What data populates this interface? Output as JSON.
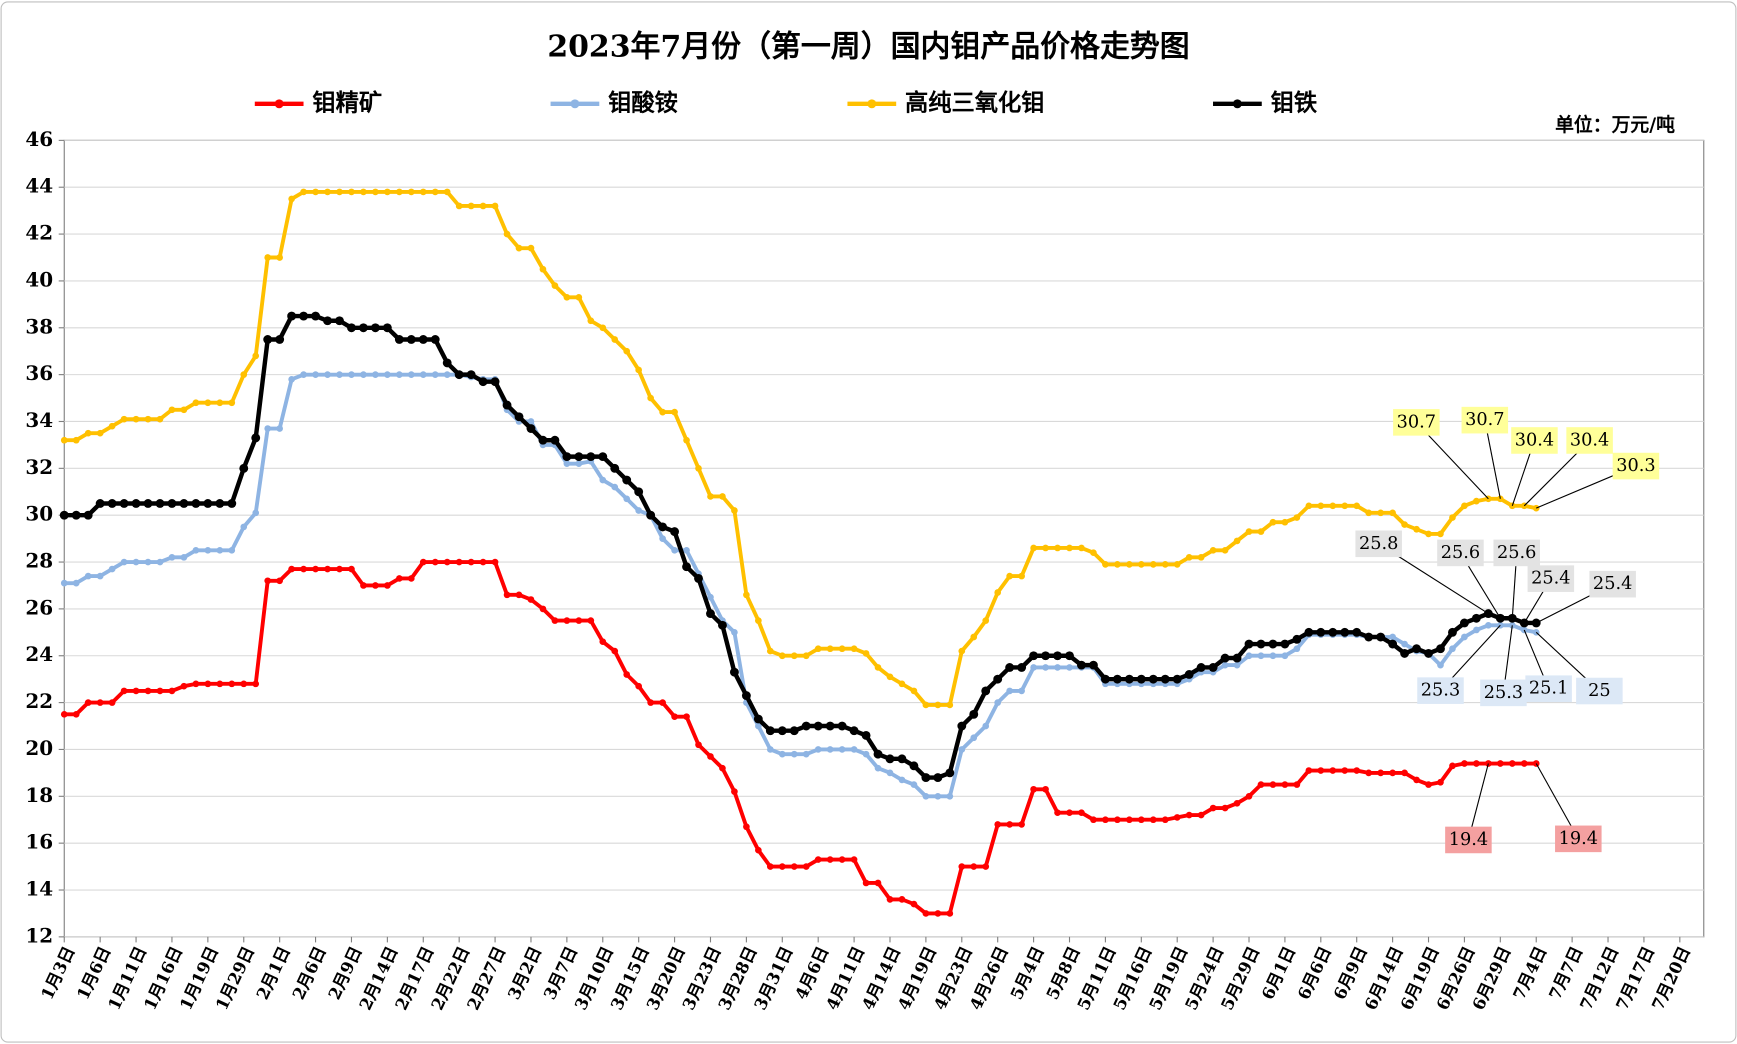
{
  "chart_data": {
    "type": "line",
    "title": "2023年7月份（第一周）国内钼产品价格走势图",
    "unit_label": "单位：万元/吨",
    "legend": "top",
    "grid": true,
    "ylim": [
      12,
      46
    ],
    "yticks": [
      12,
      14,
      16,
      18,
      20,
      22,
      24,
      26,
      28,
      30,
      32,
      34,
      36,
      38,
      40,
      42,
      44,
      46
    ],
    "categories": [
      "1月3日",
      null,
      null,
      "1月6日",
      null,
      null,
      "1月11日",
      null,
      null,
      "1月16日",
      null,
      null,
      "1月19日",
      null,
      null,
      "1月29日",
      null,
      null,
      "2月1日",
      null,
      null,
      "2月6日",
      null,
      null,
      "2月9日",
      null,
      null,
      "2月14日",
      null,
      null,
      "2月17日",
      null,
      null,
      "2月22日",
      null,
      null,
      "2月27日",
      null,
      null,
      "3月2日",
      null,
      null,
      "3月7日",
      null,
      null,
      "3月10日",
      null,
      null,
      "3月15日",
      null,
      null,
      "3月20日",
      null,
      null,
      "3月23日",
      null,
      null,
      "3月28日",
      null,
      null,
      "3月31日",
      null,
      null,
      "4月6日",
      null,
      null,
      "4月11日",
      null,
      null,
      "4月14日",
      null,
      null,
      "4月19日",
      null,
      null,
      "4月23日",
      null,
      null,
      "4月26日",
      null,
      null,
      "5月4日",
      null,
      null,
      "5月8日",
      null,
      null,
      "5月11日",
      null,
      null,
      "5月16日",
      null,
      null,
      "5月19日",
      null,
      null,
      "5月24日",
      null,
      null,
      "5月29日",
      null,
      null,
      "6月1日",
      null,
      null,
      "6月6日",
      null,
      null,
      "6月9日",
      null,
      null,
      "6月14日",
      null,
      null,
      "6月19日",
      null,
      null,
      "6月26日",
      null,
      null,
      "6月29日",
      null,
      null,
      "7月4日",
      null,
      null,
      "7月7日",
      null,
      null,
      "7月12日",
      null,
      null,
      "7月17日",
      null,
      null,
      "7月20日",
      null,
      null
    ],
    "series": [
      {
        "name": "钼精矿",
        "color": "#ff0000",
        "labeled_indices": [
          119,
          123
        ],
        "values": [
          21.5,
          21.5,
          22,
          22,
          22,
          22.5,
          22.5,
          22.5,
          22.5,
          22.5,
          22.7,
          22.8,
          22.8,
          22.8,
          22.8,
          22.8,
          22.8,
          27.2,
          27.2,
          27.7,
          27.7,
          27.7,
          27.7,
          27.7,
          27.7,
          27,
          27,
          27,
          27.3,
          27.3,
          28,
          28,
          28,
          28,
          28,
          28,
          28,
          26.6,
          26.6,
          26.4,
          26,
          25.5,
          25.5,
          25.5,
          25.5,
          24.6,
          24.2,
          23.2,
          22.7,
          22,
          22,
          21.4,
          21.4,
          20.2,
          19.7,
          19.2,
          18.2,
          16.7,
          15.7,
          15,
          15,
          15,
          15,
          15.3,
          15.3,
          15.3,
          15.3,
          14.3,
          14.3,
          13.6,
          13.6,
          13.4,
          13,
          13,
          13,
          15,
          15,
          15,
          16.8,
          16.8,
          16.8,
          18.3,
          18.3,
          17.3,
          17.3,
          17.3,
          17,
          17,
          17,
          17,
          17,
          17,
          17,
          17.1,
          17.2,
          17.2,
          17.5,
          17.5,
          17.7,
          18,
          18.5,
          18.5,
          18.5,
          18.5,
          19.1,
          19.1,
          19.1,
          19.1,
          19.1,
          19,
          19,
          19,
          19,
          18.7,
          18.5,
          18.6,
          19.3,
          19.4,
          19.4,
          19.4,
          19.4,
          19.4,
          19.4,
          19.4,
          null,
          null,
          null,
          null,
          null,
          null,
          null,
          null,
          null,
          null,
          null,
          null,
          null,
          null
        ]
      },
      {
        "name": "钼酸铵",
        "color": "#8eb4e3",
        "labeled_indices": [
          120,
          121,
          122,
          123
        ],
        "values": [
          27.1,
          27.1,
          27.4,
          27.4,
          27.7,
          28,
          28,
          28,
          28,
          28.2,
          28.2,
          28.5,
          28.5,
          28.5,
          28.5,
          29.5,
          30.1,
          33.7,
          33.7,
          35.8,
          36,
          36,
          36,
          36,
          36,
          36,
          36,
          36,
          36,
          36,
          36,
          36,
          36,
          36,
          35.9,
          35.8,
          35.8,
          34.5,
          34,
          34,
          33,
          33,
          32.2,
          32.2,
          32.3,
          31.5,
          31.2,
          30.7,
          30.2,
          30,
          29,
          28.5,
          28.5,
          27.5,
          26.5,
          25.5,
          25,
          22,
          21,
          20,
          19.8,
          19.8,
          19.8,
          20,
          20,
          20,
          20,
          19.8,
          19.2,
          19,
          18.7,
          18.5,
          18,
          18,
          18,
          20,
          20.5,
          21,
          22,
          22.5,
          22.5,
          23.5,
          23.5,
          23.5,
          23.5,
          23.5,
          23.5,
          22.8,
          22.8,
          22.8,
          22.8,
          22.8,
          22.8,
          22.8,
          23,
          23.3,
          23.3,
          23.6,
          23.6,
          24,
          24,
          24,
          24,
          24.3,
          24.9,
          24.9,
          24.9,
          24.9,
          24.9,
          24.8,
          24.8,
          24.8,
          24.5,
          24.2,
          24.1,
          23.6,
          24.3,
          24.8,
          25.1,
          25.3,
          25.3,
          25.3,
          25.1,
          25,
          null,
          null,
          null,
          null,
          null,
          null,
          null,
          null,
          null,
          null,
          null,
          null,
          null,
          null
        ]
      },
      {
        "name": "高纯三氧化钼",
        "color": "#ffc000",
        "labeled_indices": [
          119,
          120,
          121,
          122,
          123
        ],
        "values": [
          33.2,
          33.2,
          33.5,
          33.5,
          33.8,
          34.1,
          34.1,
          34.1,
          34.1,
          34.5,
          34.5,
          34.8,
          34.8,
          34.8,
          34.8,
          36,
          36.8,
          41,
          41,
          43.5,
          43.8,
          43.8,
          43.8,
          43.8,
          43.8,
          43.8,
          43.8,
          43.8,
          43.8,
          43.8,
          43.8,
          43.8,
          43.8,
          43.2,
          43.2,
          43.2,
          43.2,
          42,
          41.4,
          41.4,
          40.5,
          39.8,
          39.3,
          39.3,
          38.3,
          38,
          37.5,
          37,
          36.2,
          35,
          34.4,
          34.4,
          33.2,
          32,
          30.8,
          30.8,
          30.2,
          26.6,
          25.5,
          24.2,
          24,
          24,
          24,
          24.3,
          24.3,
          24.3,
          24.3,
          24.1,
          23.5,
          23.1,
          22.8,
          22.5,
          21.9,
          21.9,
          21.9,
          24.2,
          24.8,
          25.5,
          26.7,
          27.4,
          27.4,
          28.6,
          28.6,
          28.6,
          28.6,
          28.6,
          28.4,
          27.9,
          27.9,
          27.9,
          27.9,
          27.9,
          27.9,
          27.9,
          28.2,
          28.2,
          28.5,
          28.5,
          28.9,
          29.3,
          29.3,
          29.7,
          29.7,
          29.9,
          30.4,
          30.4,
          30.4,
          30.4,
          30.4,
          30.1,
          30.1,
          30.1,
          29.6,
          29.4,
          29.2,
          29.2,
          29.9,
          30.4,
          30.6,
          30.7,
          30.7,
          30.4,
          30.4,
          30.3,
          null,
          null,
          null,
          null,
          null,
          null,
          null,
          null,
          null,
          null,
          null,
          null,
          null,
          null
        ]
      },
      {
        "name": "钼铁",
        "color": "#000000",
        "labeled_indices": [
          119,
          120,
          121,
          122,
          123
        ],
        "values": [
          30,
          30,
          30,
          30.5,
          30.5,
          30.5,
          30.5,
          30.5,
          30.5,
          30.5,
          30.5,
          30.5,
          30.5,
          30.5,
          30.5,
          32,
          33.3,
          37.5,
          37.5,
          38.5,
          38.5,
          38.5,
          38.3,
          38.3,
          38,
          38,
          38,
          38,
          37.5,
          37.5,
          37.5,
          37.5,
          36.5,
          36,
          36,
          35.7,
          35.7,
          34.7,
          34.2,
          33.7,
          33.2,
          33.2,
          32.5,
          32.5,
          32.5,
          32.5,
          32,
          31.5,
          31,
          30,
          29.5,
          29.3,
          27.8,
          27.3,
          25.8,
          25.3,
          23.3,
          22.3,
          21.3,
          20.8,
          20.8,
          20.8,
          21,
          21,
          21,
          21,
          20.8,
          20.6,
          19.8,
          19.6,
          19.6,
          19.3,
          18.8,
          18.8,
          19,
          21,
          21.5,
          22.5,
          23,
          23.5,
          23.5,
          24,
          24,
          24,
          24,
          23.6,
          23.6,
          23,
          23,
          23,
          23,
          23,
          23,
          23,
          23.2,
          23.5,
          23.5,
          23.9,
          23.9,
          24.5,
          24.5,
          24.5,
          24.5,
          24.7,
          25,
          25,
          25,
          25,
          25,
          24.8,
          24.8,
          24.5,
          24.1,
          24.3,
          24.1,
          24.3,
          25,
          25.4,
          25.6,
          25.8,
          25.6,
          25.6,
          25.4,
          25.4,
          null,
          null,
          null,
          null,
          null,
          null,
          null,
          null,
          null,
          null,
          null,
          null,
          null,
          null
        ]
      }
    ]
  }
}
